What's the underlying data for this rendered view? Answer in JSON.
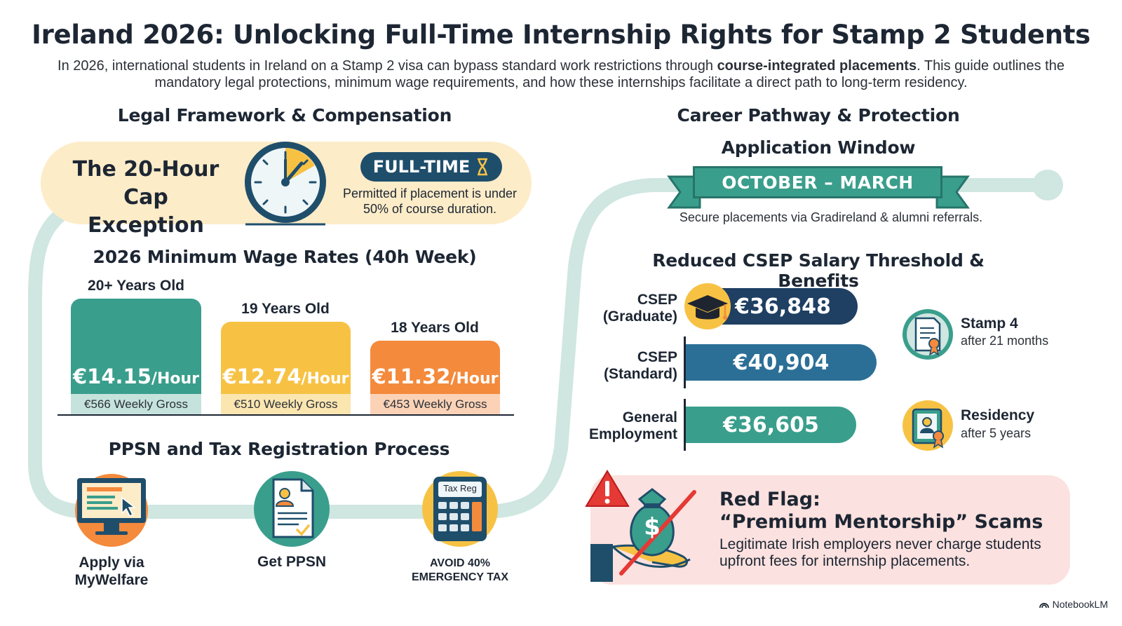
{
  "header": {
    "title": "Ireland 2026: Unlocking Full-Time Internship Rights for Stamp 2 Students",
    "intro_before": "In 2026, international students in Ireland on a Stamp 2 visa can bypass standard work restrictions through ",
    "intro_bold": "course-integrated placements",
    "intro_after": ". This guide outlines the mandatory legal protections, minimum wage requirements, and how these internships facilitate a direct path to long-term residency."
  },
  "legal": {
    "heading": "Legal Framework & Compensation",
    "cap_title": "The 20-Hour Cap Exception",
    "fulltime_label": "FULL-TIME",
    "cap_note": "Permitted if placement is under 50% of course duration."
  },
  "wages": {
    "heading": "2026 Minimum Wage Rates (40h Week)",
    "unit": "/Hour",
    "bars": [
      {
        "age": "20+ Years Old",
        "rate": "€14.15",
        "weekly": "€566 Weekly Gross",
        "color": "#3a9e8c",
        "strip": "#c5e3dc"
      },
      {
        "age": "19 Years Old",
        "rate": "€12.74",
        "weekly": "€510 Weekly Gross",
        "color": "#f7c244",
        "strip": "#fbe6b0"
      },
      {
        "age": "18 Years Old",
        "rate": "€11.32",
        "weekly": "€453 Weekly Gross",
        "color": "#f48a3c",
        "strip": "#fbd2b6"
      }
    ]
  },
  "ppsn": {
    "heading": "PPSN and Tax Registration Process",
    "steps": [
      {
        "label": "Apply via MyWelfare",
        "icon": "computer-icon"
      },
      {
        "label": "Get PPSN",
        "icon": "document-icon"
      },
      {
        "label": "AVOID 40% EMERGENCY TAX",
        "icon": "calculator-icon",
        "icon_text": "Tax Reg"
      }
    ]
  },
  "career": {
    "heading": "Career Pathway & Protection",
    "window_heading": "Application Window",
    "window_period": "OCTOBER – MARCH",
    "window_note": "Secure placements via Gradireland & alumni referrals."
  },
  "salary": {
    "heading": "Reduced CSEP Salary Threshold & Benefits",
    "bars": [
      {
        "label_line1": "CSEP",
        "label_line2": "(Graduate)",
        "value": 36848,
        "display": "€36,848",
        "color": "#1f3f63"
      },
      {
        "label_line1": "CSEP",
        "label_line2": "(Standard)",
        "value": 40904,
        "display": "€40,904",
        "color": "#2b6f97"
      },
      {
        "label_line1": "General",
        "label_line2": "Employment",
        "value": 36605,
        "display": "€36,605",
        "color": "#3a9e8c"
      }
    ],
    "benefits": [
      {
        "title": "Stamp 4",
        "sub": "after 21 months",
        "icon": "certificate-icon"
      },
      {
        "title": "Residency",
        "sub": "after 5 years",
        "icon": "id-card-icon"
      }
    ]
  },
  "redflag": {
    "title": "Red Flag: “Premium Mentorship” Scams",
    "note": "Legitimate Irish employers never charge students upfront fees for internship placements.",
    "icon_text": "$"
  },
  "brand": {
    "name": "NotebookLM"
  }
}
